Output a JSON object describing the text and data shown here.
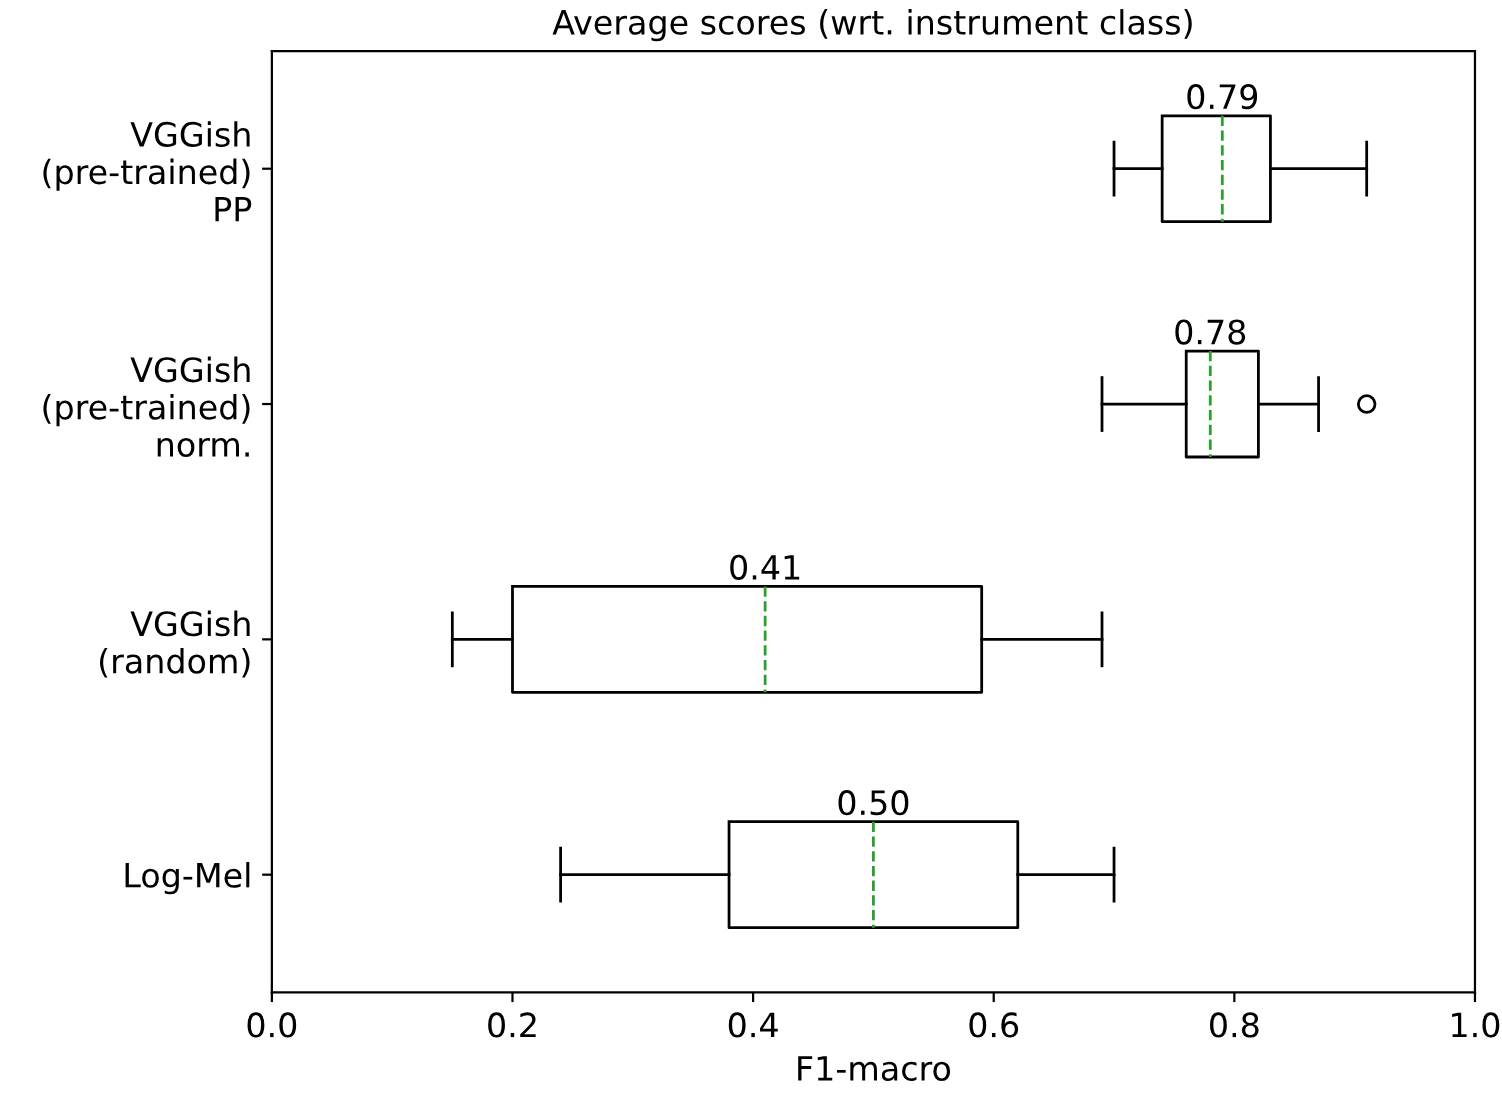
{
  "chart_data": {
    "type": "box",
    "orientation": "horizontal",
    "title": "Average scores (wrt. instrument class)",
    "xlabel": "F1-macro",
    "categories": [
      "VGGish\n(pre-trained)\nPP",
      "VGGish\n(pre-trained)\nnorm.",
      "VGGish\n(random)",
      "Log-Mel"
    ],
    "boxes": [
      {
        "low": 0.7,
        "q1": 0.74,
        "median": 0.79,
        "q3": 0.83,
        "high": 0.91
      },
      {
        "low": 0.69,
        "q1": 0.76,
        "median": 0.78,
        "q3": 0.82,
        "high": 0.87,
        "outliers": [
          0.91
        ]
      },
      {
        "low": 0.15,
        "q1": 0.2,
        "median": 0.41,
        "q3": 0.59,
        "high": 0.69
      },
      {
        "low": 0.24,
        "q1": 0.38,
        "median": 0.5,
        "q3": 0.62,
        "high": 0.7
      }
    ],
    "value_labels": [
      "0.79",
      "0.78",
      "0.41",
      "0.50"
    ],
    "color": "#000000",
    "xlim": [
      0.0,
      1.0
    ],
    "xticks": [
      {
        "value": 0.0,
        "label": "0.0"
      },
      0.2,
      0.4,
      0.6,
      0.8,
      {
        "value": 1.0,
        "label": "1.0"
      }
    ],
    "grid": false
  }
}
